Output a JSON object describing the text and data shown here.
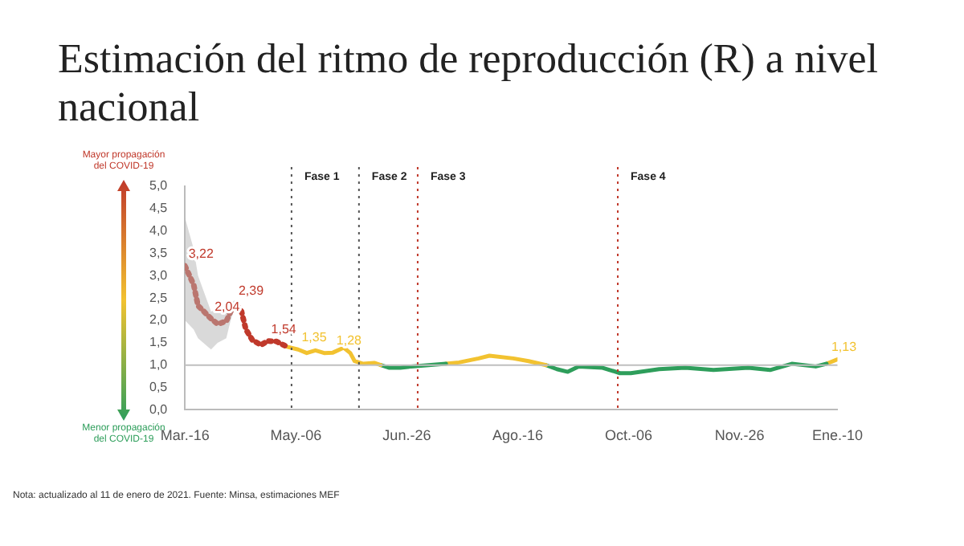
{
  "chart_data": {
    "type": "line",
    "title": "Estimación del ritmo de reproducción (R) a nivel nacional",
    "xlim": [
      "2020-03-16",
      "2021-01-10"
    ],
    "xticks": [
      {
        "value": "2020-03-16",
        "label": "Mar.-16"
      },
      {
        "value": "2020-05-06",
        "label": "May.-06"
      },
      {
        "value": "2020-06-26",
        "label": "Jun.-26"
      },
      {
        "value": "2020-08-16",
        "label": "Ago.-16"
      },
      {
        "value": "2020-10-06",
        "label": "Oct.-06"
      },
      {
        "value": "2020-11-26",
        "label": "Nov.-26"
      },
      {
        "value": "2021-01-10",
        "label": "Ene.-10"
      }
    ],
    "ylim": [
      0,
      5
    ],
    "yticks": [
      {
        "value": 0,
        "label": "0,0"
      },
      {
        "value": 0.5,
        "label": "0,5"
      },
      {
        "value": 1,
        "label": "1,0"
      },
      {
        "value": 1.5,
        "label": "1,5"
      },
      {
        "value": 2,
        "label": "2,0"
      },
      {
        "value": 2.5,
        "label": "2,5"
      },
      {
        "value": 3,
        "label": "3,0"
      },
      {
        "value": 3.5,
        "label": "3,5"
      },
      {
        "value": 4,
        "label": "4,0"
      },
      {
        "value": 4.5,
        "label": "4,5"
      },
      {
        "value": 5,
        "label": "5,0"
      }
    ],
    "grid": false,
    "legend": false,
    "series": [
      {
        "color": "#c0392b",
        "line_style": "dotted",
        "x": [
          "2020-03-16",
          "2020-03-20",
          "2020-03-22",
          "2020-03-28",
          "2020-03-31",
          "2020-04-04",
          "2020-04-06",
          "2020-04-08",
          "2020-04-11",
          "2020-04-13",
          "2020-04-16",
          "2020-04-20",
          "2020-04-23",
          "2020-04-27",
          "2020-05-02"
        ],
        "values": [
          3.22,
          2.8,
          2.33,
          2.04,
          1.92,
          1.98,
          2.2,
          2.39,
          2.2,
          1.8,
          1.56,
          1.45,
          1.54,
          1.53,
          1.41
        ],
        "lower": [
          2.0,
          1.8,
          1.6,
          1.35,
          1.5,
          1.6,
          2.0,
          2.3,
          2.2,
          1.8,
          1.56,
          1.45,
          1.54,
          1.53,
          1.41
        ],
        "upper": [
          4.3,
          3.6,
          3.0,
          2.2,
          2.25,
          2.3,
          2.4,
          2.45,
          2.2,
          1.8,
          1.56,
          1.45,
          1.54,
          1.53,
          1.41
        ]
      },
      {
        "color": "#f2c230",
        "x": [
          "2020-05-02",
          "2020-05-07",
          "2020-05-11",
          "2020-05-15",
          "2020-05-19",
          "2020-05-23",
          "2020-05-28",
          "2020-05-31",
          "2020-06-02",
          "2020-06-06",
          "2020-06-11",
          "2020-06-14"
        ],
        "values": [
          1.41,
          1.35,
          1.27,
          1.33,
          1.27,
          1.28,
          1.39,
          1.27,
          1.09,
          1.03,
          1.05,
          1.0
        ]
      },
      {
        "color": "#2e9e5b",
        "x": [
          "2020-06-14",
          "2020-06-18",
          "2020-06-23",
          "2020-06-28",
          "2020-07-06",
          "2020-07-14"
        ],
        "values": [
          1.0,
          0.94,
          0.94,
          0.97,
          1.0,
          1.03
        ]
      },
      {
        "color": "#f2c230",
        "x": [
          "2020-07-14",
          "2020-07-20",
          "2020-07-29",
          "2020-08-03",
          "2020-08-14",
          "2020-08-21",
          "2020-08-29"
        ],
        "values": [
          1.03,
          1.06,
          1.15,
          1.21,
          1.15,
          1.09,
          1.0
        ]
      },
      {
        "color": "#2e9e5b",
        "x": [
          "2020-08-29",
          "2020-09-03",
          "2020-09-08",
          "2020-09-13",
          "2020-09-24",
          "2020-10-02",
          "2020-10-07",
          "2020-10-20",
          "2020-11-01",
          "2020-11-14",
          "2020-11-30",
          "2020-12-10",
          "2020-12-20",
          "2020-12-31",
          "2021-01-05"
        ],
        "values": [
          1.0,
          0.91,
          0.85,
          0.97,
          0.94,
          0.82,
          0.82,
          0.91,
          0.94,
          0.89,
          0.94,
          0.89,
          1.03,
          0.97,
          1.03
        ]
      },
      {
        "color": "#f2c230",
        "x": [
          "2021-01-05",
          "2021-01-10"
        ],
        "values": [
          1.03,
          1.13
        ]
      }
    ],
    "ref_lines": [
      {
        "axis": "y",
        "value": 1,
        "color": "#bfbfbf",
        "line_style": "solid"
      },
      {
        "axis": "x",
        "value": "2020-05-04",
        "color": "#555555",
        "line_style": "dotted",
        "label": "Fase 1"
      },
      {
        "axis": "x",
        "value": "2020-06-04",
        "color": "#555555",
        "line_style": "dotted",
        "label": "Fase 2"
      },
      {
        "axis": "x",
        "value": "2020-07-01",
        "color": "#c0392b",
        "line_style": "dotted",
        "label": "Fase 3"
      },
      {
        "axis": "x",
        "value": "2020-10-01",
        "color": "#c0392b",
        "line_style": "dotted",
        "label": "Fase 4"
      }
    ],
    "annotations": [
      "Mayor propagación del COVID-19",
      "Menor propagación del COVID-19",
      "Nota: actualizado al 11 de enero de 2021. Fuente: Minsa, estimaciones MEF",
      {
        "text": "3,22",
        "x": "2020-03-16",
        "y": 3.22
      },
      {
        "text": "2,04",
        "x": "2020-03-28",
        "y": 2.04
      },
      {
        "text": "2,39",
        "x": "2020-04-08",
        "y": 2.39
      },
      {
        "text": "1,54",
        "x": "2020-04-23",
        "y": 1.54
      },
      {
        "text": "1,35",
        "x": "2020-05-07",
        "y": 1.35
      },
      {
        "text": "1,28",
        "x": "2020-05-23",
        "y": 1.28
      },
      {
        "text": "1,13",
        "x": "2021-01-10",
        "y": 1.13
      }
    ]
  }
}
